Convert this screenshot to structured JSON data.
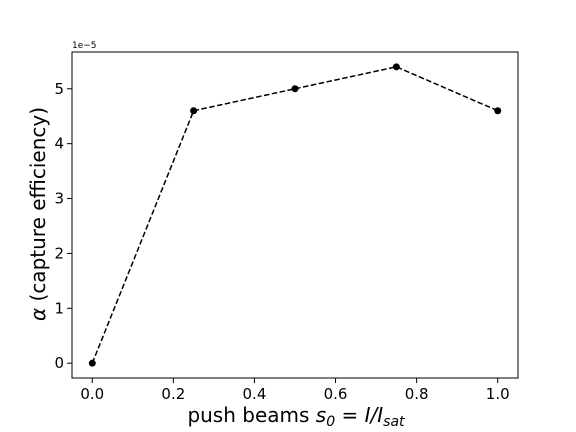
{
  "chart_data": {
    "type": "line",
    "x": [
      0.0,
      0.25,
      0.5,
      0.75,
      1.0
    ],
    "series": [
      {
        "values": [
          0.0,
          4.6e-05,
          5e-05,
          5.4e-05,
          4.6e-05
        ],
        "color": "#000000",
        "line_style": "dashed",
        "marker": "circle"
      }
    ],
    "xlabel": "push beams s₀ = I/Iₛₐₜ",
    "ylabel": "α (capture efficiency)",
    "xlabel_parts": {
      "prefix": "push beams ",
      "s": "s",
      "s_sub": "0",
      "eq": " = ",
      "I": "I",
      "slash": "/",
      "I2": "I",
      "I2_sub": "sat"
    },
    "ylabel_parts": {
      "alpha": "α",
      "rest": " (capture efficiency)"
    },
    "x_ticks": [
      "0.0",
      "0.2",
      "0.4",
      "0.6",
      "0.8",
      "1.0"
    ],
    "y_ticks": [
      "0",
      "1",
      "2",
      "3",
      "4",
      "5"
    ],
    "y_offset_label": "1e−5",
    "xlim": [
      -0.05,
      1.05
    ],
    "ylim": [
      -2.7e-06,
      5.67e-05
    ],
    "y_scale_factor": 1e-05,
    "grid": false,
    "legend": false
  }
}
